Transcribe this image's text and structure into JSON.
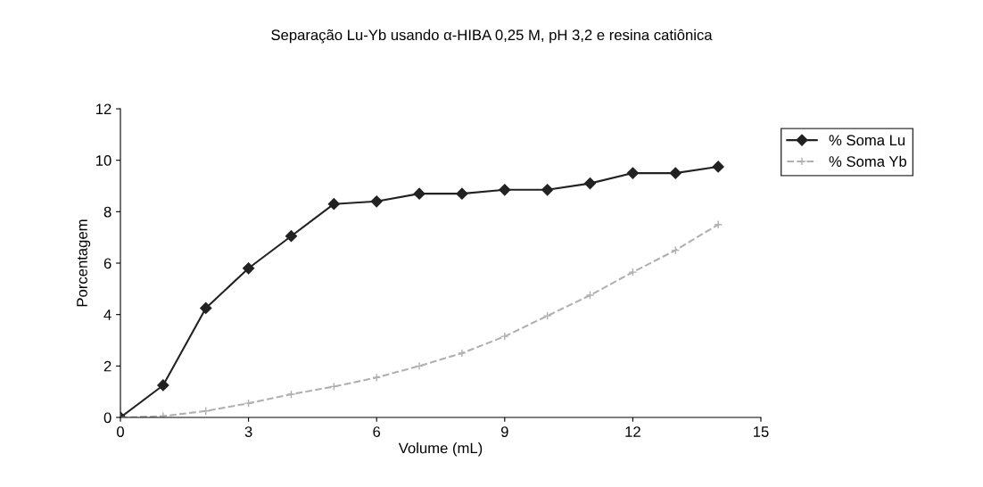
{
  "chart_data": {
    "type": "line",
    "title": "Separação Lu-Yb usando α-HIBA 0,25 M, pH 3,2 e resina catiônica",
    "xlabel": "Volume (mL)",
    "ylabel": "Porcentagem",
    "x": [
      0,
      1,
      2,
      3,
      4,
      5,
      6,
      7,
      8,
      9,
      10,
      11,
      12,
      13,
      14
    ],
    "series": [
      {
        "name": "% Soma Lu",
        "color": "#222222",
        "marker": "diamond",
        "line_style": "solid",
        "values": [
          0,
          1.25,
          4.25,
          5.8,
          7.05,
          8.3,
          8.4,
          8.7,
          8.7,
          8.85,
          8.85,
          9.1,
          9.5,
          9.5,
          9.75
        ]
      },
      {
        "name": "% Soma Yb",
        "color": "#b0b0b0",
        "marker": "cross",
        "line_style": "dashed",
        "values": [
          0,
          0.05,
          0.25,
          0.55,
          0.9,
          1.2,
          1.55,
          2.0,
          2.5,
          3.15,
          3.95,
          4.75,
          5.65,
          6.5,
          7.5
        ]
      }
    ],
    "xlim": [
      0,
      15
    ],
    "xticks": [
      0,
      3,
      6,
      9,
      12,
      15
    ],
    "ylim": [
      0,
      12
    ],
    "yticks": [
      0,
      2,
      4,
      6,
      8,
      10,
      12
    ],
    "grid": false,
    "legend": "top right"
  }
}
